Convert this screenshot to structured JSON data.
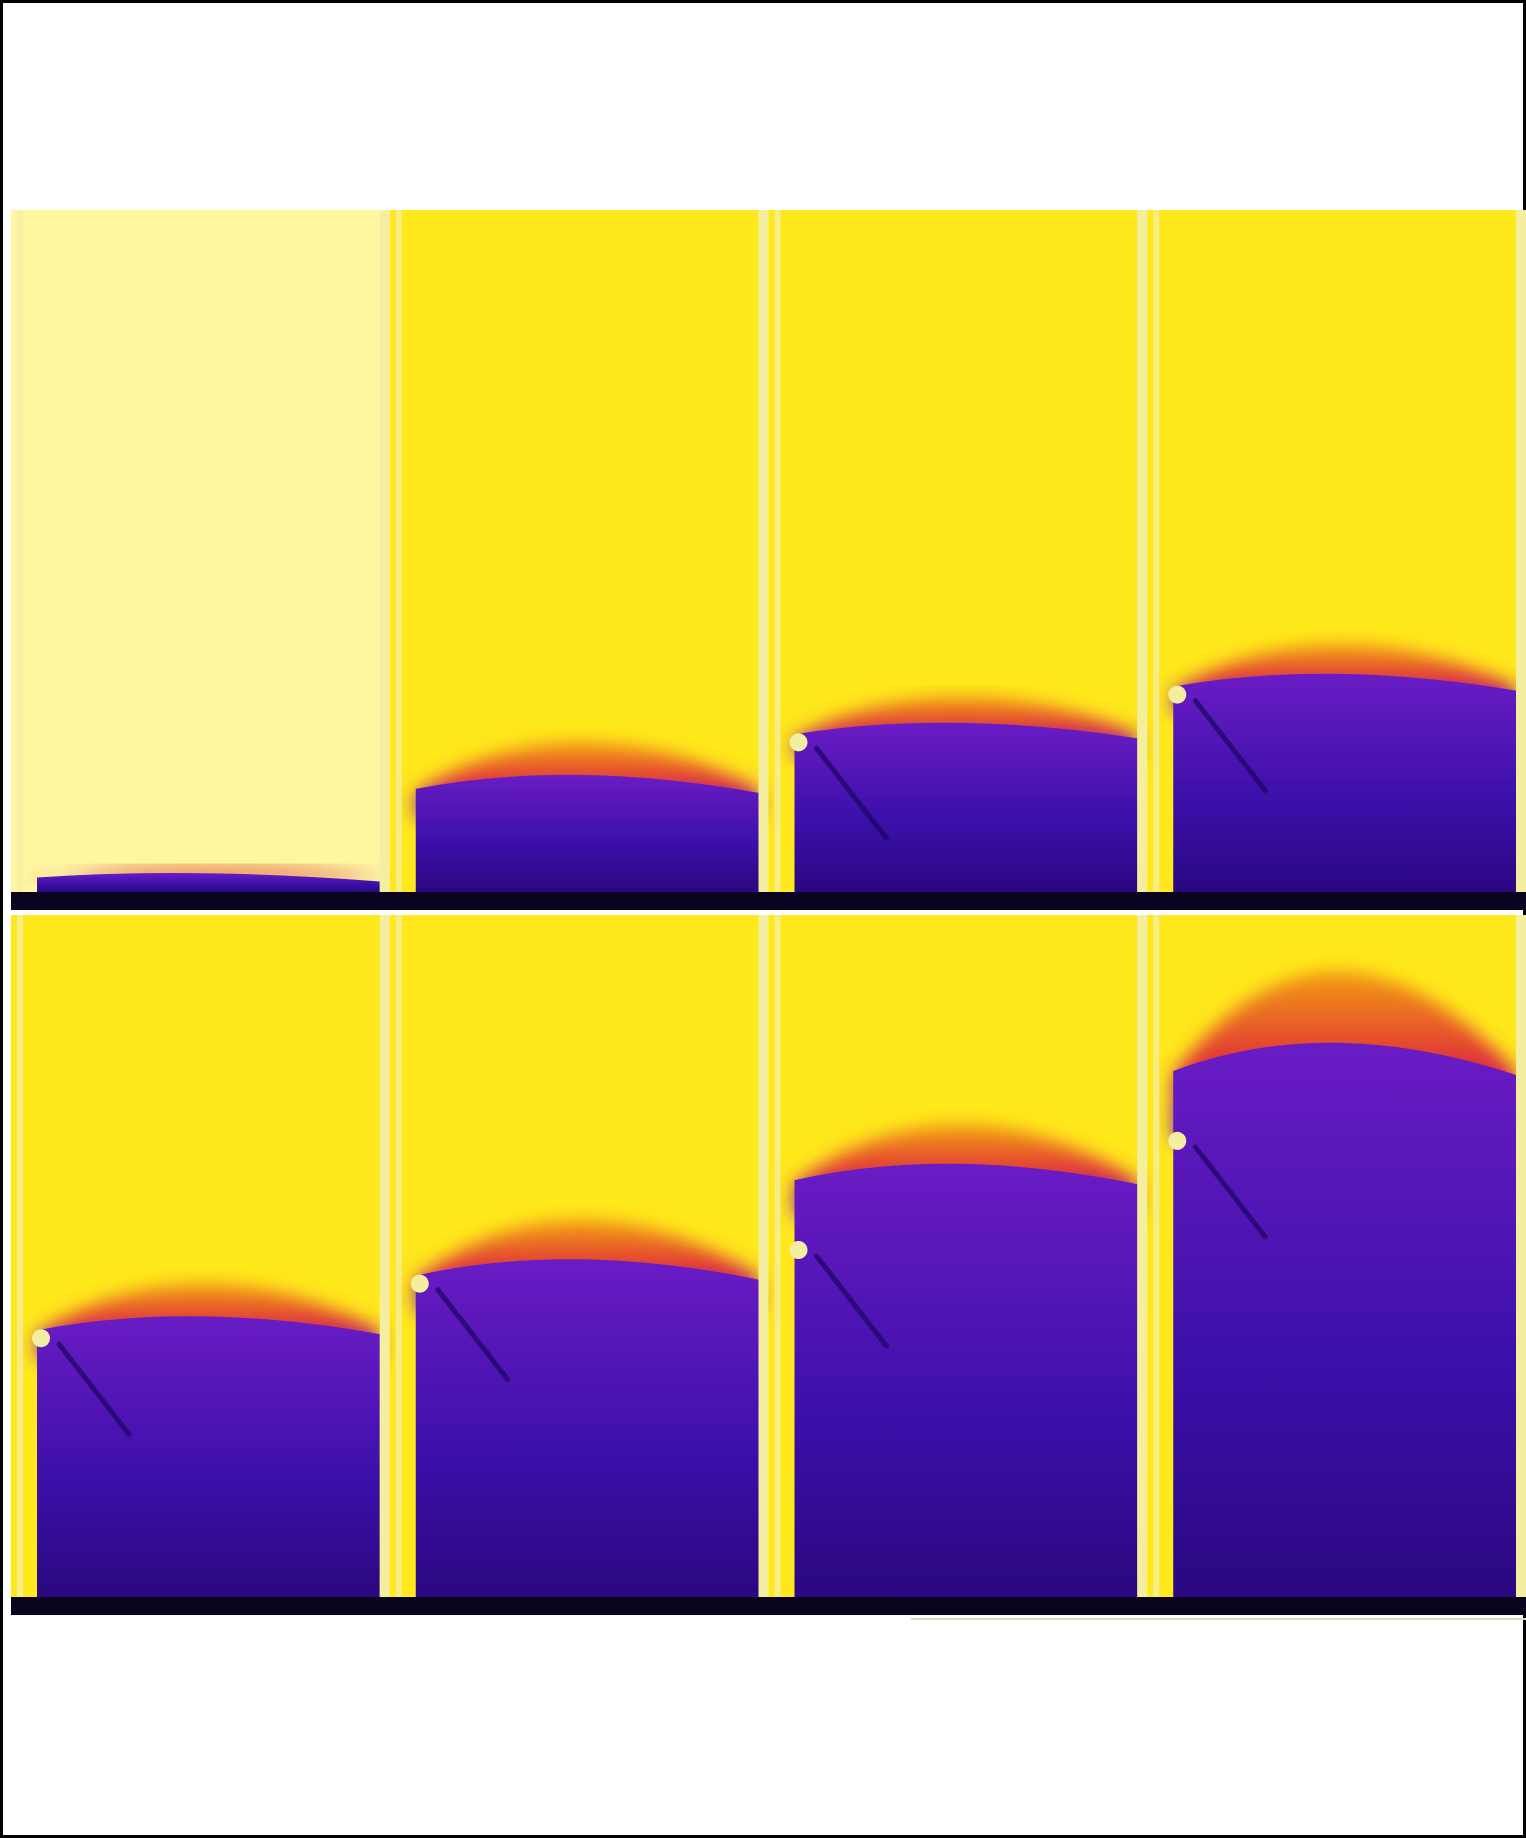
{
  "figure": {
    "description_labels": [],
    "rows": [
      {
        "id": "row-top",
        "panels": [
          {
            "fill_level": 0.03,
            "front": 0.02,
            "spike": false
          },
          {
            "fill_level": 0.16,
            "front": 0.1,
            "spike": false
          },
          {
            "fill_level": 0.24,
            "front": 0.08,
            "spike": true
          },
          {
            "fill_level": 0.31,
            "front": 0.09,
            "spike": true
          }
        ]
      },
      {
        "id": "row-bottom",
        "panels": [
          {
            "fill_level": 0.4,
            "front": 0.1,
            "spike": true
          },
          {
            "fill_level": 0.48,
            "front": 0.12,
            "spike": true
          },
          {
            "fill_level": 0.62,
            "front": 0.12,
            "spike": true
          },
          {
            "fill_level": 0.78,
            "front": 0.22,
            "spike": true
          }
        ]
      }
    ],
    "colors": {
      "background": "#ffe81c",
      "background_light": "#fff7a0",
      "fluid_dark": "#3a0fa8",
      "fluid_mid": "#6a1cc4",
      "front_orange": "#f08a10",
      "front_red": "#e0303a",
      "divider": "#f4eea0",
      "floor": "#0a0420"
    }
  }
}
